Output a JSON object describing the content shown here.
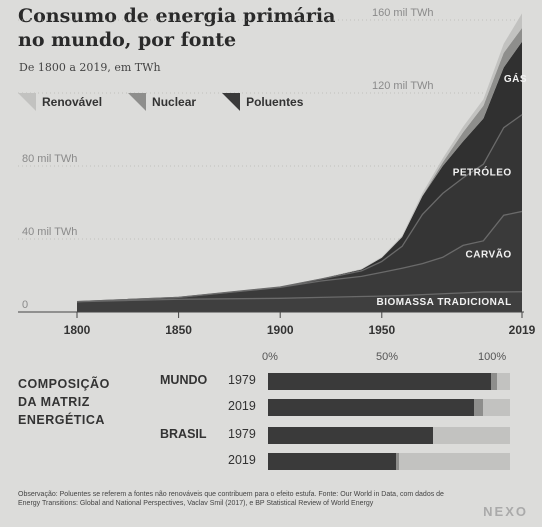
{
  "header": {
    "title": "Consumo de energia primária no mundo, por fonte",
    "subtitle": "De 1800 a 2019, em TWh"
  },
  "legend": [
    {
      "name": "Renovável",
      "color": "#c2c2c0"
    },
    {
      "name": "Nuclear",
      "color": "#8e8e8c"
    },
    {
      "name": "Poluentes",
      "color": "#3a3a3a"
    }
  ],
  "chart_data": {
    "type": "area",
    "stacked": true,
    "xlim": [
      1800,
      2019
    ],
    "ylim": [
      0,
      160000
    ],
    "x_ticks": [
      "1800",
      "1850",
      "1900",
      "1950",
      "2019"
    ],
    "y_ticks": [
      {
        "value": 0,
        "label": "0"
      },
      {
        "value": 40000,
        "label": "40 mil TWh"
      },
      {
        "value": 80000,
        "label": "80 mil TWh"
      },
      {
        "value": 120000,
        "label": "120 mil TWh"
      },
      {
        "value": 160000,
        "label": "160 mil TWh"
      }
    ],
    "x": [
      1800,
      1850,
      1900,
      1920,
      1940,
      1950,
      1960,
      1970,
      1980,
      1990,
      2000,
      2010,
      2019
    ],
    "series": [
      {
        "name": "BIOMASSA TRADICIONAL",
        "color": "#3f3f3f",
        "values": [
          5600,
          7000,
          7500,
          8000,
          8500,
          8700,
          9000,
          9500,
          10000,
          10500,
          11000,
          11000,
          11100
        ]
      },
      {
        "name": "CARVÃO",
        "color": "#3a3a3a",
        "values": [
          100,
          1000,
          6000,
          9000,
          11000,
          13000,
          15000,
          17000,
          20000,
          26000,
          28000,
          42000,
          44000
        ]
      },
      {
        "name": "PETRÓLEO",
        "color": "#353535",
        "values": [
          0,
          0,
          200,
          1000,
          3000,
          6000,
          12000,
          27000,
          35000,
          37000,
          42000,
          48000,
          53000
        ]
      },
      {
        "name": "GÁS",
        "color": "#303030",
        "values": [
          0,
          0,
          60,
          300,
          800,
          2000,
          5000,
          10000,
          15000,
          20000,
          25000,
          33000,
          40000
        ]
      },
      {
        "name": "Nuclear",
        "color": "#8e8e8c",
        "values": [
          0,
          0,
          0,
          0,
          0,
          0,
          0,
          200,
          2000,
          5000,
          7000,
          8000,
          7500
        ]
      },
      {
        "name": "Renovável",
        "color": "#c2c2c0",
        "values": [
          0,
          0,
          0,
          100,
          300,
          500,
          800,
          1500,
          2200,
          3000,
          3500,
          5000,
          8000
        ]
      }
    ]
  },
  "composition": {
    "title_lines": [
      "COMPOSIÇÃO",
      "DA MATRIZ",
      "ENERGÉTICA"
    ],
    "percent_ticks": [
      "0%",
      "50%",
      "100%"
    ],
    "rows": [
      {
        "country": "MUNDO",
        "year": "1979",
        "poluentes": 92,
        "nuclear": 2.5,
        "renovavel": 5.5
      },
      {
        "country": "",
        "year": "2019",
        "poluentes": 85,
        "nuclear": 4,
        "renovavel": 11
      },
      {
        "country": "BRASIL",
        "year": "1979",
        "poluentes": 68,
        "nuclear": 0,
        "renovavel": 32
      },
      {
        "country": "",
        "year": "2019",
        "poluentes": 53,
        "nuclear": 1,
        "renovavel": 46
      }
    ]
  },
  "footnote": {
    "text": "Observação: Poluentes se referem a fontes não renováveis que contribuem para o efeito estufa. Fonte: Our World in Data, com dados de Energy Transitions: Global and National Perspectives, Vaclav Smil (2017), e BP Statistical Review of World Energy"
  },
  "brand": "NEXO"
}
